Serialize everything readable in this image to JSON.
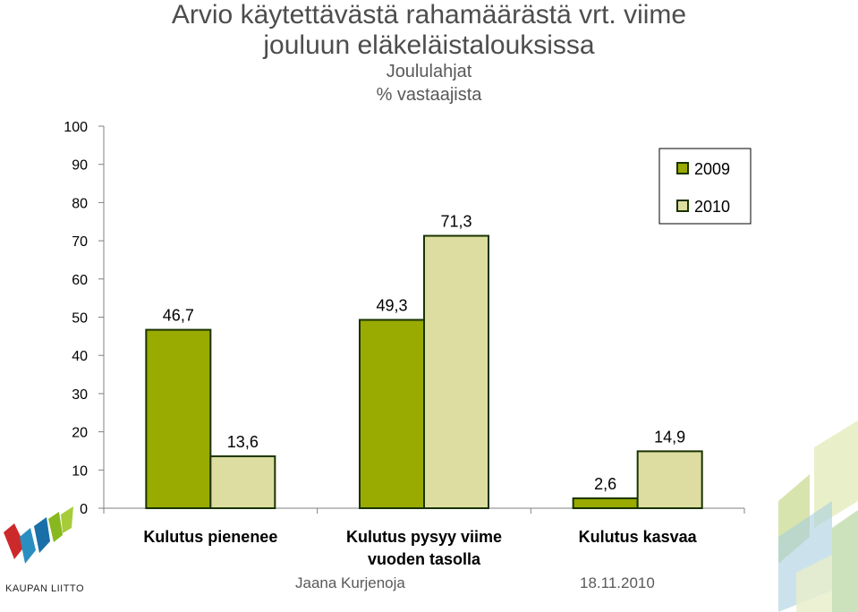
{
  "title_line1": "Arvio käytettävästä rahamäärästä vrt. viime",
  "title_line2": "jouluun eläkeläistalouksissa",
  "subtitle": "Joululahjat",
  "unit_label": "% vastaajista",
  "footer_author": "Jaana Kurjenoja",
  "footer_date": "18.11.2010",
  "logo_text": "KAUPAN LIITTO",
  "colors": {
    "series_2009": "#99aa00",
    "series_2010": "#dedda1",
    "bar_outline": "#1a3300"
  },
  "chart_data": {
    "type": "bar",
    "categories": [
      "Kulutus pienenee",
      "Kulutus pysyy viime vuoden tasolla",
      "Kulutus kasvaa"
    ],
    "series": [
      {
        "name": "2009",
        "values": [
          46.7,
          49.3,
          2.6
        ],
        "labels": [
          "46,7",
          "49,3",
          "2,6"
        ]
      },
      {
        "name": "2010",
        "values": [
          13.6,
          71.3,
          14.9
        ],
        "labels": [
          "13,6",
          "71,3",
          "14,9"
        ]
      }
    ],
    "ylim": [
      0,
      100
    ],
    "yticks": [
      0,
      10,
      20,
      30,
      40,
      50,
      60,
      70,
      80,
      90,
      100
    ],
    "legend_position": "top-right",
    "grid": false
  }
}
